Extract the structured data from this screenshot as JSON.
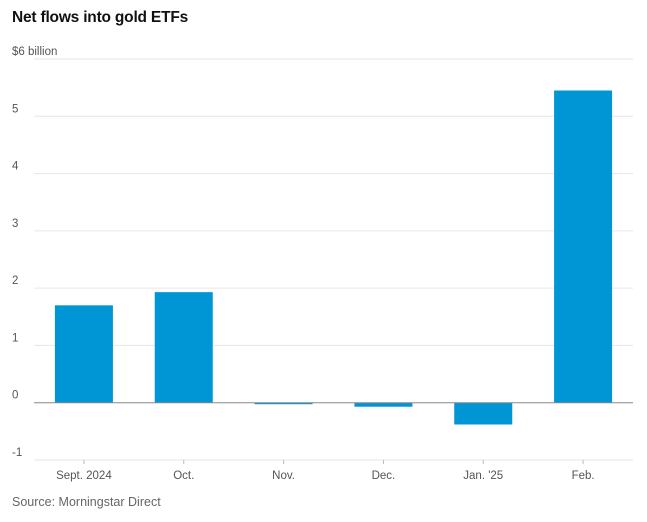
{
  "title": "Net flows into gold ETFs",
  "source": "Source: Morningstar Direct",
  "colors": {
    "bar": "#0096d6",
    "grid": "#e6e6e6",
    "zero": "#888888",
    "tick_text": "#555555"
  },
  "chart_data": {
    "type": "bar",
    "title": "Net flows into gold ETFs",
    "xlabel": "",
    "ylabel": "",
    "categories": [
      "Sept. 2024",
      "Oct.",
      "Nov.",
      "Dec.",
      "Jan. '25",
      "Feb."
    ],
    "values": [
      1.7,
      1.93,
      -0.02,
      -0.07,
      -0.38,
      5.45
    ],
    "ylim": [
      -1,
      6
    ],
    "yticks": [
      -1,
      0,
      1,
      2,
      3,
      4,
      5,
      6
    ],
    "ytick_labels": [
      "-1",
      "0",
      "1",
      "2",
      "3",
      "4",
      "5",
      "$6 billion"
    ],
    "grid": true,
    "legend": "none"
  }
}
